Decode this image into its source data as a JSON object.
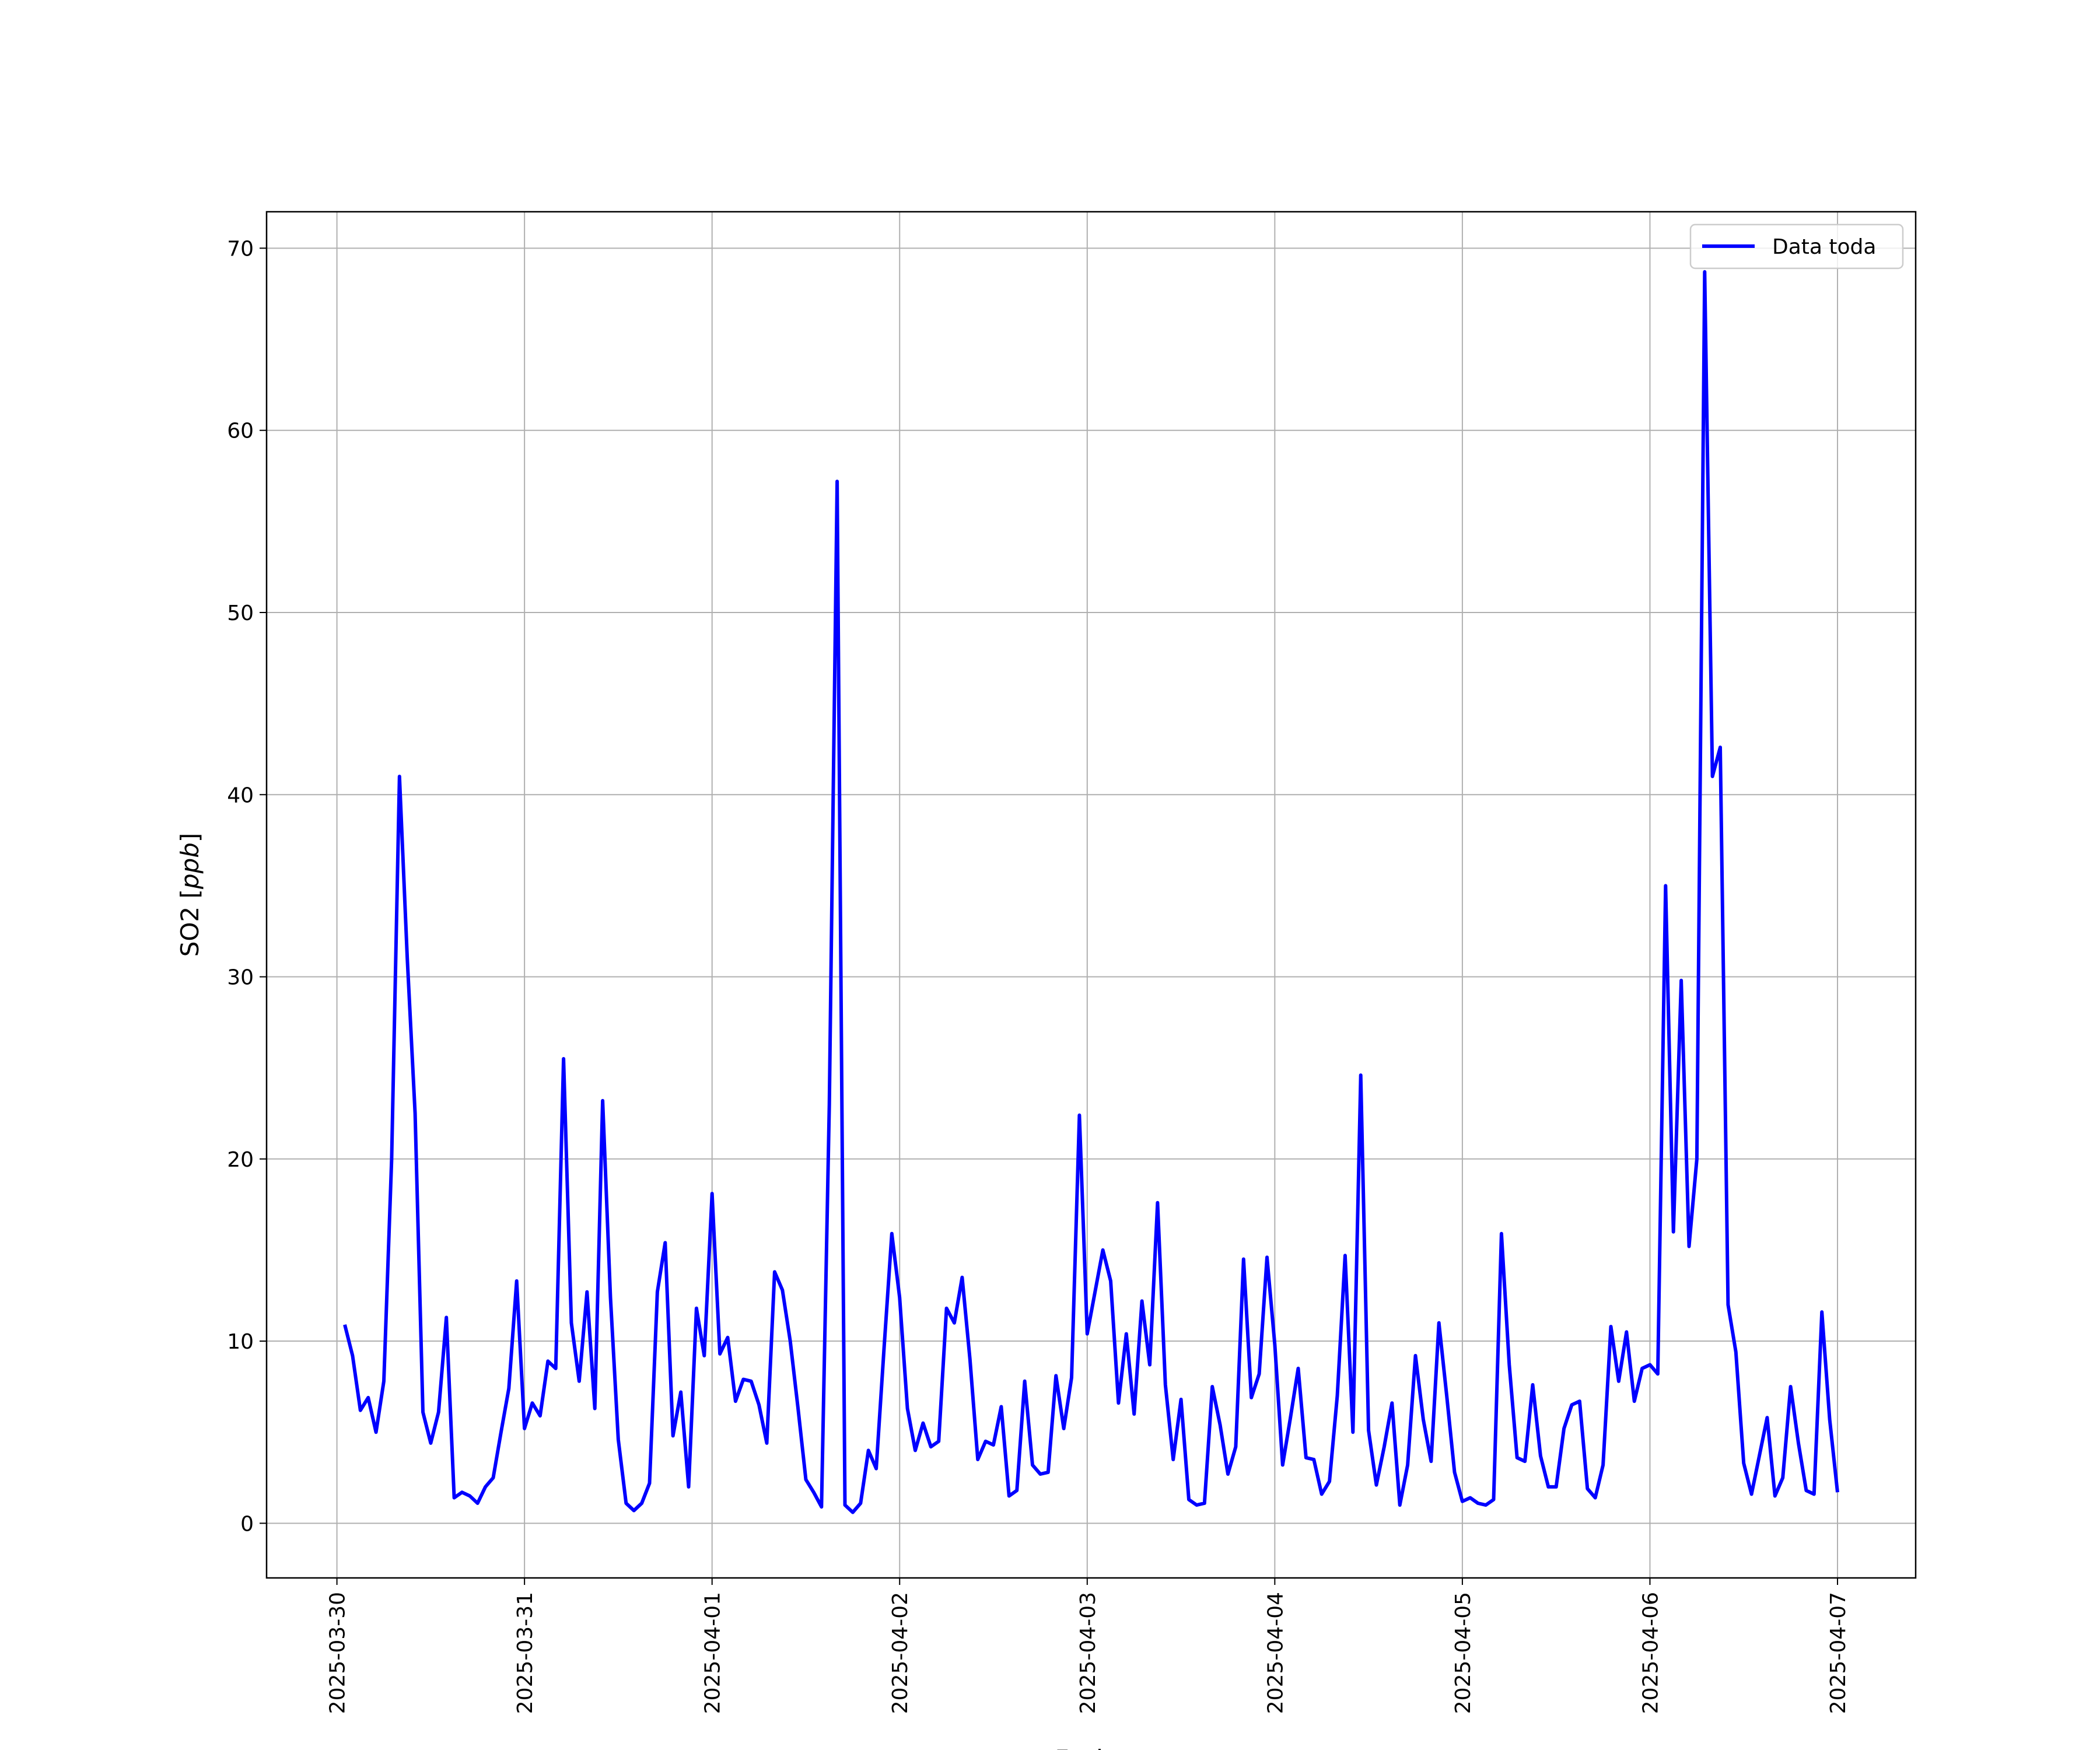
{
  "chart_data": {
    "type": "line",
    "xlabel": "Fecha",
    "ylabel": "SO2 [ppb]",
    "ylabel_parts": {
      "prefix": "SO2 [",
      "unit": "ppb",
      "suffix": "]"
    },
    "x_scale": "date",
    "xlim": [
      "2025-03-29T15:00",
      "2025-04-07T10:00"
    ],
    "ylim": [
      -3,
      72
    ],
    "x_ticks": [
      "2025-03-30",
      "2025-03-31",
      "2025-04-01",
      "2025-04-02",
      "2025-04-03",
      "2025-04-04",
      "2025-04-05",
      "2025-04-06",
      "2025-04-07"
    ],
    "y_ticks": [
      0,
      10,
      20,
      30,
      40,
      50,
      60,
      70
    ],
    "grid": true,
    "legend_position": "top-right",
    "series": [
      {
        "name": "Data toda",
        "color": "#0000ff",
        "start": "2025-03-30T01:00",
        "interval_hours": 1,
        "values": [
          10.9,
          9.2,
          6.2,
          6.9,
          5.0,
          7.8,
          20.0,
          41.0,
          31.0,
          22.5,
          6.1,
          4.4,
          6.1,
          11.3,
          1.4,
          1.7,
          1.5,
          1.1,
          2.0,
          2.5,
          5.0,
          7.4,
          13.3,
          5.2,
          6.6,
          5.9,
          8.9,
          8.5,
          25.5,
          11.0,
          7.8,
          12.7,
          6.3,
          23.2,
          12.4,
          4.6,
          1.1,
          0.7,
          1.1,
          2.2,
          12.7,
          15.4,
          4.8,
          7.2,
          2.0,
          11.8,
          9.2,
          18.1,
          9.3,
          10.2,
          6.7,
          7.9,
          7.8,
          6.5,
          4.4,
          13.8,
          12.8,
          10.0,
          6.3,
          2.4,
          1.7,
          0.9,
          23.0,
          57.2,
          1.0,
          0.6,
          1.1,
          4.0,
          3.0,
          9.6,
          15.9,
          12.4,
          6.3,
          4.0,
          5.5,
          4.2,
          4.5,
          11.8,
          11.0,
          13.5,
          9.0,
          3.5,
          4.5,
          4.3,
          6.4,
          1.5,
          1.8,
          7.8,
          3.2,
          2.7,
          2.8,
          8.1,
          5.2,
          8.0,
          22.4,
          10.4,
          12.7,
          15.0,
          13.3,
          6.6,
          10.4,
          6.0,
          12.2,
          8.7,
          17.6,
          7.6,
          3.5,
          6.8,
          1.3,
          1.0,
          1.1,
          7.5,
          5.4,
          2.7,
          4.2,
          14.5,
          6.9,
          8.2,
          14.6,
          9.8,
          3.2,
          5.8,
          8.5,
          3.6,
          3.5,
          1.6,
          2.3,
          7.0,
          14.7,
          5.0,
          24.6,
          5.1,
          2.1,
          4.2,
          6.6,
          1.0,
          3.2,
          9.2,
          5.7,
          3.4,
          11.0,
          7.0,
          2.8,
          1.2,
          1.4,
          1.1,
          1.0,
          1.3,
          15.9,
          8.7,
          3.6,
          3.4,
          7.6,
          3.7,
          2.0,
          2.0,
          5.2,
          6.5,
          6.7,
          1.9,
          1.4,
          3.2,
          10.8,
          7.8,
          10.5,
          6.7,
          8.5,
          8.7,
          8.2,
          35.0,
          16.0,
          29.8,
          15.2,
          20.0,
          68.7,
          41.0,
          42.6,
          12.0,
          9.4,
          3.3,
          1.6,
          3.7,
          5.8,
          1.5,
          2.5,
          7.5,
          4.4,
          1.8,
          1.6,
          11.6,
          5.7,
          1.7
        ]
      }
    ]
  }
}
